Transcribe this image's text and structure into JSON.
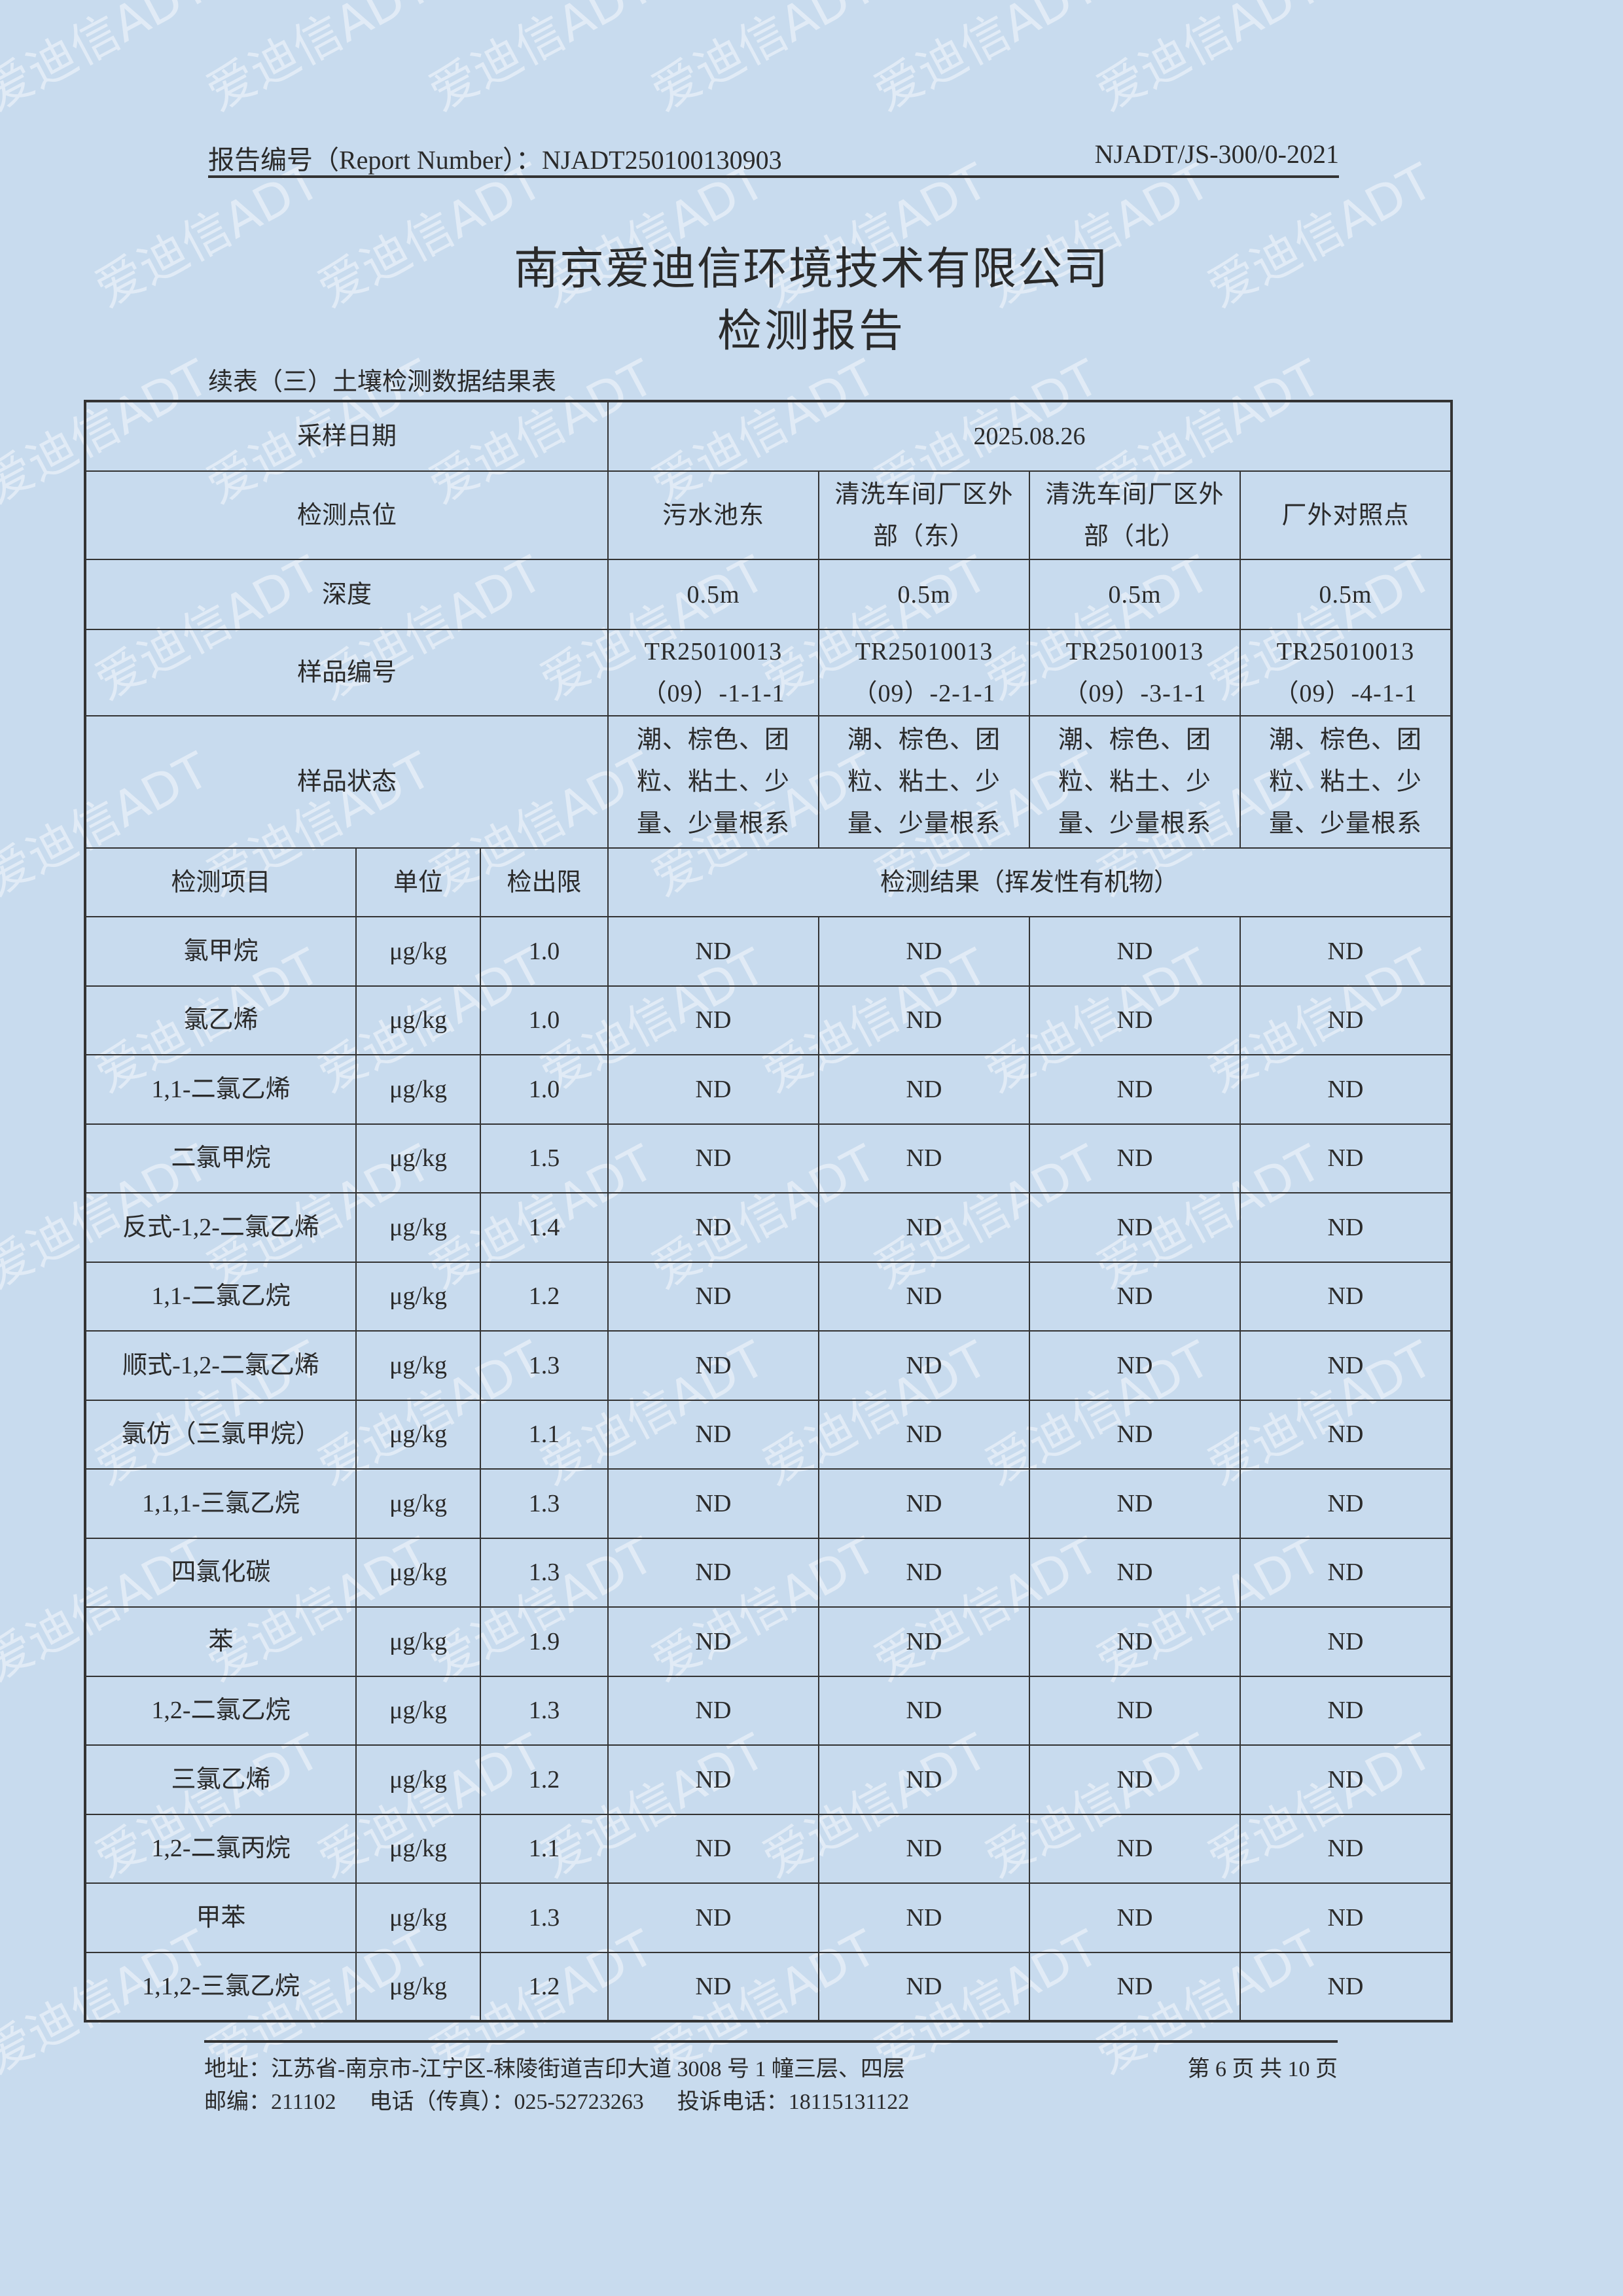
{
  "header": {
    "report_number": "报告编号（Report Number）：NJADT250100130903",
    "doc_code": "NJADT/JS-300/0-2021"
  },
  "company": "南京爱迪信环境技术有限公司",
  "title": "检测报告",
  "table_caption": "续表（三）土壤检测数据结果表",
  "watermark": "爱迪信ADT",
  "table": {
    "sampling_date_label": "采样日期",
    "sampling_date": "2025.08.26",
    "location_label": "检测点位",
    "locations": [
      "污水池东",
      "清洗车间厂区外部（东）",
      "清洗车间厂区外部（北）",
      "厂外对照点"
    ],
    "depth_label": "深度",
    "depths": [
      "0.5m",
      "0.5m",
      "0.5m",
      "0.5m"
    ],
    "sample_id_label": "样品编号",
    "sample_ids": [
      "TR25010013（09）-1-1-1",
      "TR25010013（09）-2-1-1",
      "TR25010013（09）-3-1-1",
      "TR25010013（09）-4-1-1"
    ],
    "sample_state_label": "样品状态",
    "sample_states": [
      "潮、棕色、团粒、粘土、少量、少量根系",
      "潮、棕色、团粒、粘土、少量、少量根系",
      "潮、棕色、团粒、粘土、少量、少量根系",
      "潮、棕色、团粒、粘土、少量、少量根系"
    ],
    "col_item": "检测项目",
    "col_unit": "单位",
    "col_limit": "检出限",
    "col_result": "检测结果（挥发性有机物）",
    "rows": [
      {
        "item": "氯甲烷",
        "unit": "μg/kg",
        "limit": "1.0",
        "results": [
          "ND",
          "ND",
          "ND",
          "ND"
        ]
      },
      {
        "item": "氯乙烯",
        "unit": "μg/kg",
        "limit": "1.0",
        "results": [
          "ND",
          "ND",
          "ND",
          "ND"
        ]
      },
      {
        "item": "1,1-二氯乙烯",
        "unit": "μg/kg",
        "limit": "1.0",
        "results": [
          "ND",
          "ND",
          "ND",
          "ND"
        ]
      },
      {
        "item": "二氯甲烷",
        "unit": "μg/kg",
        "limit": "1.5",
        "results": [
          "ND",
          "ND",
          "ND",
          "ND"
        ]
      },
      {
        "item": "反式-1,2-二氯乙烯",
        "unit": "μg/kg",
        "limit": "1.4",
        "results": [
          "ND",
          "ND",
          "ND",
          "ND"
        ]
      },
      {
        "item": "1,1-二氯乙烷",
        "unit": "μg/kg",
        "limit": "1.2",
        "results": [
          "ND",
          "ND",
          "ND",
          "ND"
        ]
      },
      {
        "item": "顺式-1,2-二氯乙烯",
        "unit": "μg/kg",
        "limit": "1.3",
        "results": [
          "ND",
          "ND",
          "ND",
          "ND"
        ]
      },
      {
        "item": "氯仿（三氯甲烷）",
        "unit": "μg/kg",
        "limit": "1.1",
        "results": [
          "ND",
          "ND",
          "ND",
          "ND"
        ]
      },
      {
        "item": "1,1,1-三氯乙烷",
        "unit": "μg/kg",
        "limit": "1.3",
        "results": [
          "ND",
          "ND",
          "ND",
          "ND"
        ]
      },
      {
        "item": "四氯化碳",
        "unit": "μg/kg",
        "limit": "1.3",
        "results": [
          "ND",
          "ND",
          "ND",
          "ND"
        ]
      },
      {
        "item": "苯",
        "unit": "μg/kg",
        "limit": "1.9",
        "results": [
          "ND",
          "ND",
          "ND",
          "ND"
        ]
      },
      {
        "item": "1,2-二氯乙烷",
        "unit": "μg/kg",
        "limit": "1.3",
        "results": [
          "ND",
          "ND",
          "ND",
          "ND"
        ]
      },
      {
        "item": "三氯乙烯",
        "unit": "μg/kg",
        "limit": "1.2",
        "results": [
          "ND",
          "ND",
          "ND",
          "ND"
        ]
      },
      {
        "item": "1,2-二氯丙烷",
        "unit": "μg/kg",
        "limit": "1.1",
        "results": [
          "ND",
          "ND",
          "ND",
          "ND"
        ]
      },
      {
        "item": "甲苯",
        "unit": "μg/kg",
        "limit": "1.3",
        "results": [
          "ND",
          "ND",
          "ND",
          "ND"
        ]
      },
      {
        "item": "1,1,2-三氯乙烷",
        "unit": "μg/kg",
        "limit": "1.2",
        "results": [
          "ND",
          "ND",
          "ND",
          "ND"
        ]
      }
    ]
  },
  "footer": {
    "address": "地址：江苏省-南京市-江宁区-秣陵街道吉印大道 3008 号 1 幢三层、四层",
    "contact": "邮编：211102      电话（传真）：025-52723263      投诉电话：18115131122",
    "page": "第 6 页 共 10 页"
  }
}
